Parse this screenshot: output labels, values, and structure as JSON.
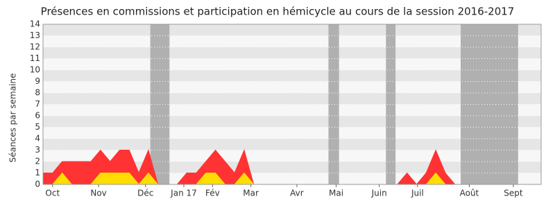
{
  "chart_data": {
    "type": "area",
    "title": "Présences en commissions et participation en hémicycle au cours de la session 2016-2017",
    "y_label": "Séances par semaine",
    "x": [
      0,
      1,
      2,
      3,
      4,
      5,
      6,
      7,
      8,
      9,
      10,
      11,
      12,
      13,
      14,
      15,
      16,
      17,
      18,
      19,
      20,
      21,
      22,
      23,
      24,
      25,
      26,
      27,
      28,
      29,
      30,
      31,
      32,
      33,
      34,
      35,
      36,
      37,
      38,
      39,
      40,
      41,
      42,
      43,
      44,
      45,
      46,
      47,
      48,
      49,
      50,
      51,
      52
    ],
    "xlim": [
      0,
      52
    ],
    "xticks": [
      {
        "value": 1,
        "label": "Oct"
      },
      {
        "value": 5.8,
        "label": "Nov"
      },
      {
        "value": 10.7,
        "label": "Déc"
      },
      {
        "value": 14.7,
        "label": "Jan 17"
      },
      {
        "value": 17.7,
        "label": "Fév"
      },
      {
        "value": 21.7,
        "label": "Mar"
      },
      {
        "value": 26.5,
        "label": "Avr"
      },
      {
        "value": 30.6,
        "label": "Mai"
      },
      {
        "value": 35.1,
        "label": "Juin"
      },
      {
        "value": 39.1,
        "label": "Juil"
      },
      {
        "value": 44.5,
        "label": "Août"
      },
      {
        "value": 49.1,
        "label": "Sept"
      }
    ],
    "ylim": [
      0,
      14
    ],
    "yticks": [
      0,
      1,
      2,
      3,
      4,
      5,
      6,
      7,
      8,
      9,
      10,
      11,
      12,
      13,
      14
    ],
    "grid": true,
    "shaded_periods": [
      [
        11.2,
        13.2
      ],
      [
        29.8,
        30.9
      ],
      [
        35.8,
        36.8
      ],
      [
        43.6,
        49.6
      ]
    ],
    "series": [
      {
        "color": "#ff3333",
        "values": [
          1,
          1,
          2,
          2,
          2,
          2,
          3,
          2,
          3,
          3,
          1,
          3,
          0,
          0,
          0,
          1,
          1,
          2,
          3,
          2,
          1,
          3,
          0,
          0,
          0,
          0,
          0,
          0,
          0,
          0,
          0,
          0,
          0,
          0,
          0,
          0,
          0,
          0,
          1,
          0,
          1,
          3,
          1,
          0,
          0,
          0,
          0,
          0,
          0,
          0,
          0,
          0,
          0
        ]
      },
      {
        "color": "#ffdd00",
        "values": [
          0,
          0,
          1,
          0,
          0,
          0,
          1,
          1,
          1,
          1,
          0,
          1,
          0,
          0,
          0,
          0,
          0,
          1,
          1,
          0,
          0,
          1,
          0,
          0,
          0,
          0,
          0,
          0,
          0,
          0,
          0,
          0,
          0,
          0,
          0,
          0,
          0,
          0,
          0,
          0,
          0,
          1,
          0,
          0,
          0,
          0,
          0,
          0,
          0,
          0,
          0,
          0,
          0
        ]
      }
    ]
  }
}
